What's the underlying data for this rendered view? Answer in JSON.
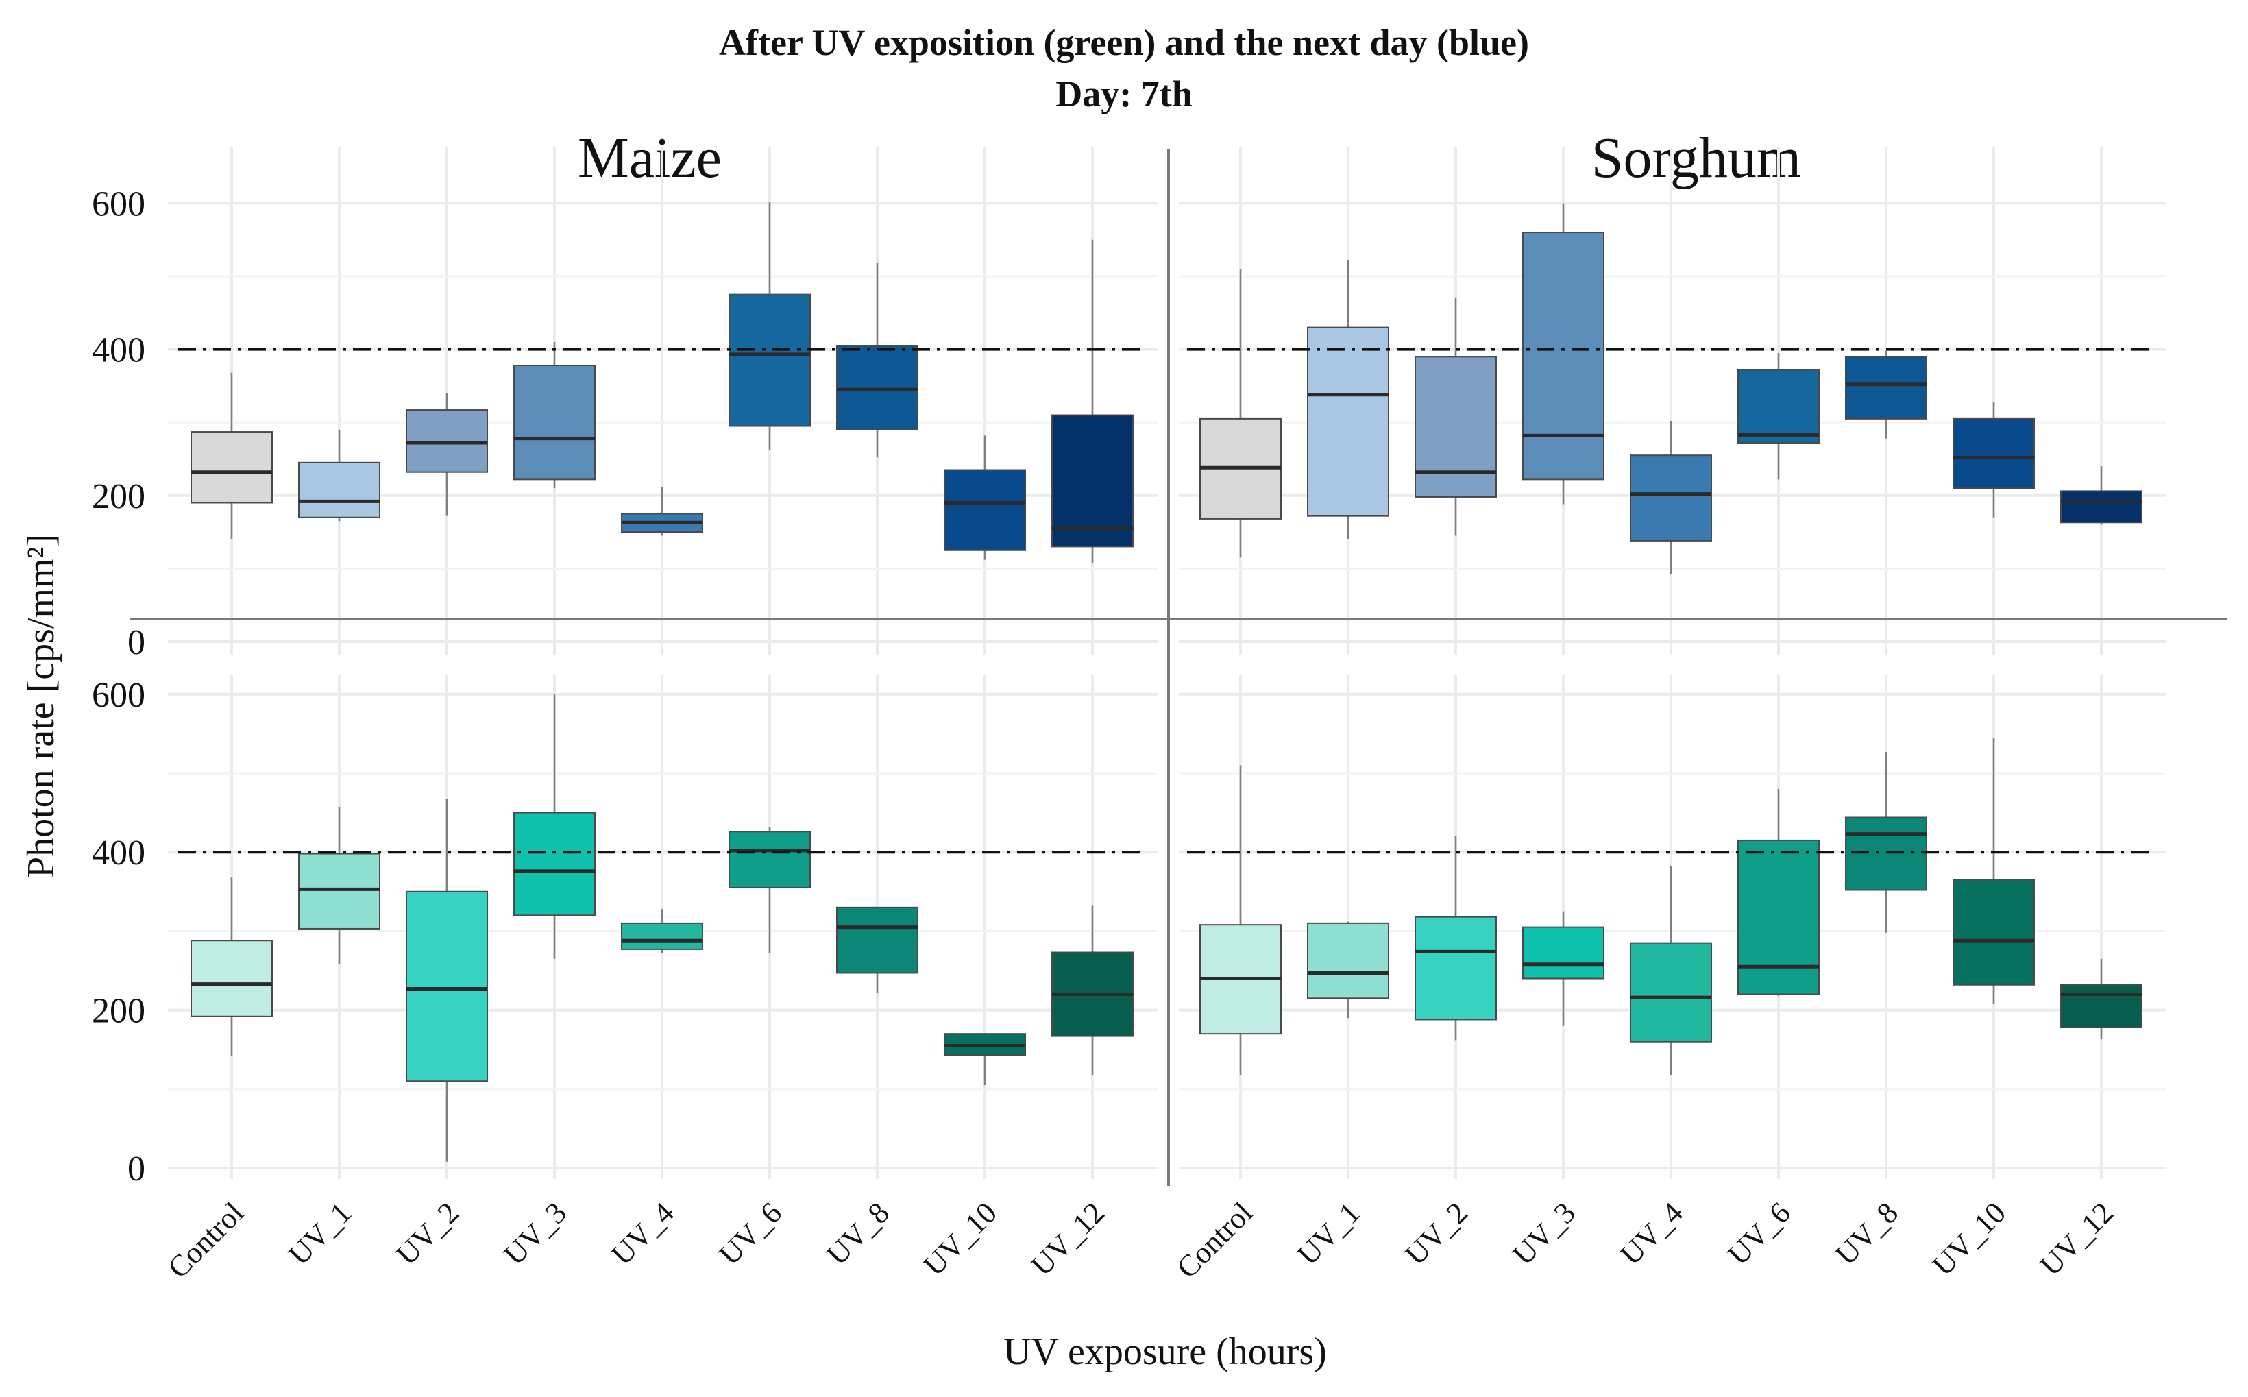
{
  "chart_data": {
    "type": "boxplot",
    "title": "After UV exposition (green) and the next day (blue)",
    "subtitle": "Day: 7th",
    "xlabel": "UV exposure (hours)",
    "ylabel": "Photon rate [cps/mm²]",
    "y_ticks": [
      0,
      200,
      400,
      600
    ],
    "categories": [
      "Control",
      "UV_1",
      "UV_2",
      "UV_3",
      "UV_4",
      "UV_6",
      "UV_8",
      "UV_10",
      "UV_12"
    ],
    "facets": {
      "columns": [
        "Maize",
        "Sorghum"
      ],
      "rows": [
        "next day (blue)",
        "after UV exposition (green)"
      ]
    },
    "reference_line": 400,
    "panels": [
      {
        "crop": "Maize",
        "row": "blue",
        "ylim": [
          -30,
          650
        ],
        "boxes": [
          {
            "cat": "Control",
            "whisker_low": 140,
            "q1": 190,
            "median": 232,
            "q3": 287,
            "whisker_high": 368,
            "color": "#d9d9d9"
          },
          {
            "cat": "UV_1",
            "whisker_low": 165,
            "q1": 170,
            "median": 192,
            "q3": 245,
            "whisker_high": 290,
            "color": "#a9c6e3"
          },
          {
            "cat": "UV_2",
            "whisker_low": 172,
            "q1": 232,
            "median": 272,
            "q3": 317,
            "whisker_high": 340,
            "color": "#7fa0c2"
          },
          {
            "cat": "UV_3",
            "whisker_low": 210,
            "q1": 222,
            "median": 278,
            "q3": 378,
            "whisker_high": 410,
            "color": "#5b8db8"
          },
          {
            "cat": "UV_4",
            "whisker_low": 145,
            "q1": 150,
            "median": 163,
            "q3": 175,
            "whisker_high": 212,
            "color": "#3b7ab0"
          },
          {
            "cat": "UV_6",
            "whisker_low": 262,
            "q1": 295,
            "median": 393,
            "q3": 475,
            "whisker_high": 602,
            "color": "#15679e"
          },
          {
            "cat": "UV_8",
            "whisker_low": 252,
            "q1": 290,
            "median": 345,
            "q3": 405,
            "whisker_high": 518,
            "color": "#0d5894"
          },
          {
            "cat": "UV_10",
            "whisker_low": 112,
            "q1": 125,
            "median": 190,
            "q3": 235,
            "whisker_high": 282,
            "color": "#084a8c"
          },
          {
            "cat": "UV_12",
            "whisker_low": 108,
            "q1": 130,
            "median": 155,
            "q3": 310,
            "whisker_high": 550,
            "color": "#05316b"
          }
        ]
      },
      {
        "crop": "Sorghum",
        "row": "blue",
        "ylim": [
          -30,
          650
        ],
        "boxes": [
          {
            "cat": "Control",
            "whisker_low": 115,
            "q1": 168,
            "median": 238,
            "q3": 305,
            "whisker_high": 510,
            "color": "#d9d9d9"
          },
          {
            "cat": "UV_1",
            "whisker_low": 140,
            "q1": 172,
            "median": 338,
            "q3": 430,
            "whisker_high": 522,
            "color": "#a9c6e3"
          },
          {
            "cat": "UV_2",
            "whisker_low": 145,
            "q1": 198,
            "median": 232,
            "q3": 390,
            "whisker_high": 470,
            "color": "#7fa0c2"
          },
          {
            "cat": "UV_3",
            "whisker_low": 188,
            "q1": 222,
            "median": 282,
            "q3": 560,
            "whisker_high": 600,
            "color": "#5b8db8"
          },
          {
            "cat": "UV_4",
            "whisker_low": 92,
            "q1": 138,
            "median": 202,
            "q3": 255,
            "whisker_high": 302,
            "color": "#3b7ab0"
          },
          {
            "cat": "UV_6",
            "whisker_low": 222,
            "q1": 272,
            "median": 283,
            "q3": 372,
            "whisker_high": 395,
            "color": "#15679e"
          },
          {
            "cat": "UV_8",
            "whisker_low": 278,
            "q1": 305,
            "median": 352,
            "q3": 390,
            "whisker_high": 398,
            "color": "#0d5894"
          },
          {
            "cat": "UV_10",
            "whisker_low": 170,
            "q1": 210,
            "median": 252,
            "q3": 305,
            "whisker_high": 328,
            "color": "#084a8c"
          },
          {
            "cat": "UV_12",
            "whisker_low": 160,
            "q1": 163,
            "median": 192,
            "q3": 206,
            "whisker_high": 240,
            "color": "#05316b"
          }
        ]
      },
      {
        "crop": "Maize",
        "row": "green",
        "ylim": [
          -10,
          640
        ],
        "boxes": [
          {
            "cat": "Control",
            "whisker_low": 142,
            "q1": 192,
            "median": 233,
            "q3": 288,
            "whisker_high": 368,
            "color": "#bfece5"
          },
          {
            "cat": "UV_1",
            "whisker_low": 258,
            "q1": 303,
            "median": 353,
            "q3": 398,
            "whisker_high": 457,
            "color": "#8fdfd3"
          },
          {
            "cat": "UV_2",
            "whisker_low": 8,
            "q1": 110,
            "median": 227,
            "q3": 350,
            "whisker_high": 468,
            "color": "#38d2c2"
          },
          {
            "cat": "UV_3",
            "whisker_low": 265,
            "q1": 320,
            "median": 376,
            "q3": 450,
            "whisker_high": 600,
            "color": "#10c2ad"
          },
          {
            "cat": "UV_4",
            "whisker_low": 272,
            "q1": 277,
            "median": 288,
            "q3": 310,
            "whisker_high": 328,
            "color": "#22b79f"
          },
          {
            "cat": "UV_6",
            "whisker_low": 272,
            "q1": 355,
            "median": 402,
            "q3": 426,
            "whisker_high": 432,
            "color": "#0f9e8a"
          },
          {
            "cat": "UV_8",
            "whisker_low": 222,
            "q1": 247,
            "median": 305,
            "q3": 330,
            "whisker_high": 330,
            "color": "#0b8677"
          },
          {
            "cat": "UV_10",
            "whisker_low": 105,
            "q1": 143,
            "median": 155,
            "q3": 170,
            "whisker_high": 170,
            "color": "#08705f"
          },
          {
            "cat": "UV_12",
            "whisker_low": 118,
            "q1": 167,
            "median": 220,
            "q3": 273,
            "whisker_high": 333,
            "color": "#075e4f"
          }
        ]
      },
      {
        "crop": "Sorghum",
        "row": "green",
        "ylim": [
          -10,
          640
        ],
        "boxes": [
          {
            "cat": "Control",
            "whisker_low": 118,
            "q1": 170,
            "median": 240,
            "q3": 308,
            "whisker_high": 510,
            "color": "#bfece5"
          },
          {
            "cat": "UV_1",
            "whisker_low": 190,
            "q1": 215,
            "median": 247,
            "q3": 310,
            "whisker_high": 312,
            "color": "#8fdfd3"
          },
          {
            "cat": "UV_2",
            "whisker_low": 162,
            "q1": 188,
            "median": 274,
            "q3": 318,
            "whisker_high": 420,
            "color": "#38d2c2"
          },
          {
            "cat": "UV_3",
            "whisker_low": 180,
            "q1": 240,
            "median": 258,
            "q3": 305,
            "whisker_high": 325,
            "color": "#10c2ad"
          },
          {
            "cat": "UV_4",
            "whisker_low": 118,
            "q1": 160,
            "median": 216,
            "q3": 285,
            "whisker_high": 382,
            "color": "#22b79f"
          },
          {
            "cat": "UV_6",
            "whisker_low": 218,
            "q1": 220,
            "median": 255,
            "q3": 415,
            "whisker_high": 480,
            "color": "#0f9e8a"
          },
          {
            "cat": "UV_8",
            "whisker_low": 298,
            "q1": 352,
            "median": 423,
            "q3": 444,
            "whisker_high": 527,
            "color": "#0b8677"
          },
          {
            "cat": "UV_10",
            "whisker_low": 208,
            "q1": 232,
            "median": 288,
            "q3": 365,
            "whisker_high": 545,
            "color": "#08705f"
          },
          {
            "cat": "UV_12",
            "whisker_low": 163,
            "q1": 178,
            "median": 220,
            "q3": 232,
            "whisker_high": 265,
            "color": "#075e4f"
          }
        ]
      }
    ]
  }
}
